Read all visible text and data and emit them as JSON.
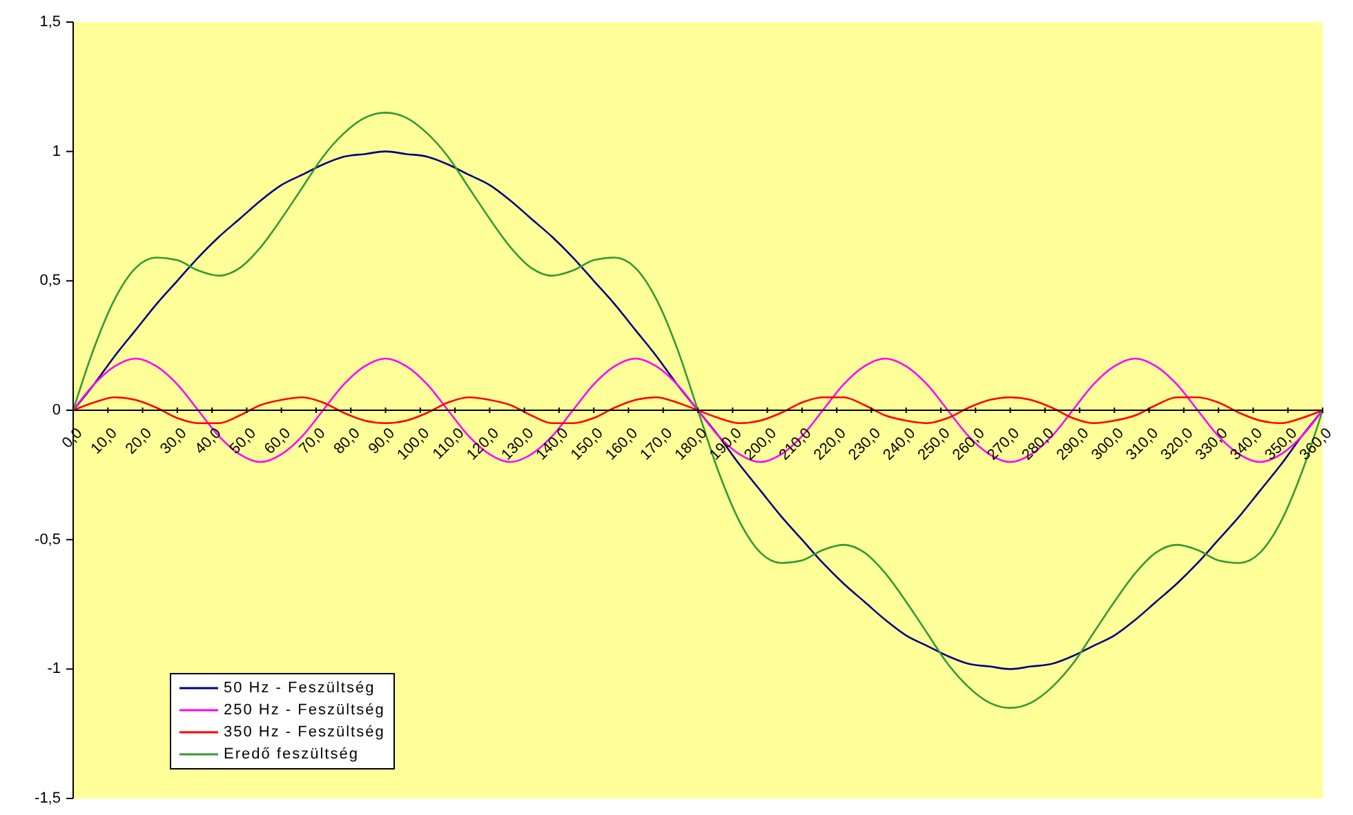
{
  "chart_data": {
    "type": "line",
    "x": [
      0,
      6,
      12,
      18,
      24,
      30,
      36,
      42,
      48,
      54,
      60,
      66,
      72,
      78,
      84,
      90,
      96,
      102,
      108,
      114,
      120,
      126,
      132,
      138,
      144,
      150,
      156,
      162,
      168,
      174,
      180,
      186,
      192,
      198,
      204,
      210,
      216,
      222,
      228,
      234,
      240,
      246,
      252,
      258,
      264,
      270,
      276,
      282,
      288,
      294,
      300,
      306,
      312,
      318,
      324,
      330,
      336,
      342,
      348,
      354,
      360
    ],
    "series": [
      {
        "name": "50 Hz - Feszültség",
        "color": "#000080",
        "values": [
          0,
          0.1,
          0.21,
          0.31,
          0.41,
          0.5,
          0.59,
          0.67,
          0.74,
          0.81,
          0.87,
          0.91,
          0.95,
          0.98,
          0.99,
          1,
          0.99,
          0.98,
          0.95,
          0.91,
          0.87,
          0.81,
          0.74,
          0.67,
          0.59,
          0.5,
          0.41,
          0.31,
          0.21,
          0.1,
          0,
          -0.1,
          -0.21,
          -0.31,
          -0.41,
          -0.5,
          -0.59,
          -0.67,
          -0.74,
          -0.81,
          -0.87,
          -0.91,
          -0.95,
          -0.98,
          -0.99,
          -1,
          -0.99,
          -0.98,
          -0.95,
          -0.91,
          -0.87,
          -0.81,
          -0.74,
          -0.67,
          -0.59,
          -0.5,
          -0.41,
          -0.31,
          -0.21,
          -0.1,
          0
        ]
      },
      {
        "name": "250 Hz - Feszültség",
        "color": "#ff00ff",
        "values": [
          0,
          0.1,
          0.17,
          0.2,
          0.17,
          0.1,
          0,
          -0.1,
          -0.17,
          -0.2,
          -0.17,
          -0.1,
          0,
          0.1,
          0.17,
          0.2,
          0.17,
          0.1,
          0,
          -0.1,
          -0.17,
          -0.2,
          -0.17,
          -0.1,
          0,
          0.1,
          0.17,
          0.2,
          0.17,
          0.1,
          0,
          -0.1,
          -0.17,
          -0.2,
          -0.17,
          -0.1,
          0,
          0.1,
          0.17,
          0.2,
          0.17,
          0.1,
          0,
          -0.1,
          -0.17,
          -0.2,
          -0.17,
          -0.1,
          0,
          0.1,
          0.17,
          0.2,
          0.17,
          0.1,
          0,
          -0.1,
          -0.17,
          -0.2,
          -0.17,
          -0.1,
          0
        ]
      },
      {
        "name": "350 Hz - Feszültség",
        "color": "#ff0000",
        "values": [
          0,
          0.03,
          0.05,
          0.04,
          0.01,
          -0.03,
          -0.05,
          -0.05,
          -0.02,
          0.02,
          0.04,
          0.05,
          0.03,
          -0.01,
          -0.04,
          -0.05,
          -0.04,
          -0.01,
          0.03,
          0.05,
          0.04,
          0.02,
          -0.02,
          -0.05,
          -0.05,
          -0.03,
          0.01,
          0.04,
          0.05,
          0.03,
          0,
          -0.03,
          -0.05,
          -0.04,
          -0.01,
          0.03,
          0.05,
          0.05,
          0.02,
          -0.02,
          -0.04,
          -0.05,
          -0.03,
          0.01,
          0.04,
          0.05,
          0.04,
          0.01,
          -0.03,
          -0.05,
          -0.04,
          -0.02,
          0.02,
          0.05,
          0.05,
          0.03,
          -0.01,
          -0.04,
          -0.05,
          -0.03,
          0
        ]
      },
      {
        "name": "Eredő feszültség",
        "color": "#339933",
        "values": [
          0,
          0.24,
          0.43,
          0.55,
          0.59,
          0.58,
          0.54,
          0.52,
          0.55,
          0.63,
          0.74,
          0.86,
          0.98,
          1.07,
          1.13,
          1.15,
          1.13,
          1.07,
          0.98,
          0.86,
          0.74,
          0.63,
          0.55,
          0.52,
          0.54,
          0.58,
          0.59,
          0.55,
          0.43,
          0.24,
          0,
          -0.24,
          -0.43,
          -0.55,
          -0.59,
          -0.58,
          -0.54,
          -0.52,
          -0.55,
          -0.63,
          -0.74,
          -0.86,
          -0.98,
          -1.07,
          -1.13,
          -1.15,
          -1.13,
          -1.07,
          -0.98,
          -0.86,
          -0.74,
          -0.63,
          -0.55,
          -0.52,
          -0.54,
          -0.58,
          -0.59,
          -0.55,
          -0.43,
          -0.24,
          0
        ]
      }
    ],
    "xlim": [
      0,
      360
    ],
    "xticks": [
      {
        "value": 0,
        "label": "0,0"
      },
      {
        "value": 10,
        "label": "10,0"
      },
      {
        "value": 20,
        "label": "20,0"
      },
      {
        "value": 30,
        "label": "30,0"
      },
      {
        "value": 40,
        "label": "40,0"
      },
      {
        "value": 50,
        "label": "50,0"
      },
      {
        "value": 60,
        "label": "60,0"
      },
      {
        "value": 70,
        "label": "70,0"
      },
      {
        "value": 80,
        "label": "80,0"
      },
      {
        "value": 90,
        "label": "90,0"
      },
      {
        "value": 100,
        "label": "100,0"
      },
      {
        "value": 110,
        "label": "110,0"
      },
      {
        "value": 120,
        "label": "120,0"
      },
      {
        "value": 130,
        "label": "130,0"
      },
      {
        "value": 140,
        "label": "140,0"
      },
      {
        "value": 150,
        "label": "150,0"
      },
      {
        "value": 160,
        "label": "160,0"
      },
      {
        "value": 170,
        "label": "170,0"
      },
      {
        "value": 180,
        "label": "180,0"
      },
      {
        "value": 190,
        "label": "190,0"
      },
      {
        "value": 200,
        "label": "200,0"
      },
      {
        "value": 210,
        "label": "210,0"
      },
      {
        "value": 220,
        "label": "220,0"
      },
      {
        "value": 230,
        "label": "230,0"
      },
      {
        "value": 240,
        "label": "240,0"
      },
      {
        "value": 250,
        "label": "250,0"
      },
      {
        "value": 260,
        "label": "260,0"
      },
      {
        "value": 270,
        "label": "270,0"
      },
      {
        "value": 280,
        "label": "280,0"
      },
      {
        "value": 290,
        "label": "290,0"
      },
      {
        "value": 300,
        "label": "300,0"
      },
      {
        "value": 310,
        "label": "310,0"
      },
      {
        "value": 320,
        "label": "320,0"
      },
      {
        "value": 330,
        "label": "330,0"
      },
      {
        "value": 340,
        "label": "340,0"
      },
      {
        "value": 350,
        "label": "350,0"
      },
      {
        "value": 360,
        "label": "360,0"
      }
    ],
    "ylim": [
      -1.5,
      1.5
    ],
    "yticks": [
      {
        "value": -1.5,
        "label": "-1,5"
      },
      -1,
      {
        "value": -0.5,
        "label": "-0,5"
      },
      0,
      {
        "value": 0.5,
        "label": "0,5"
      },
      1,
      {
        "value": 1.5,
        "label": "1,5"
      }
    ],
    "grid": false,
    "legend": "bottom left",
    "marker": "none",
    "line_style": "solid"
  }
}
